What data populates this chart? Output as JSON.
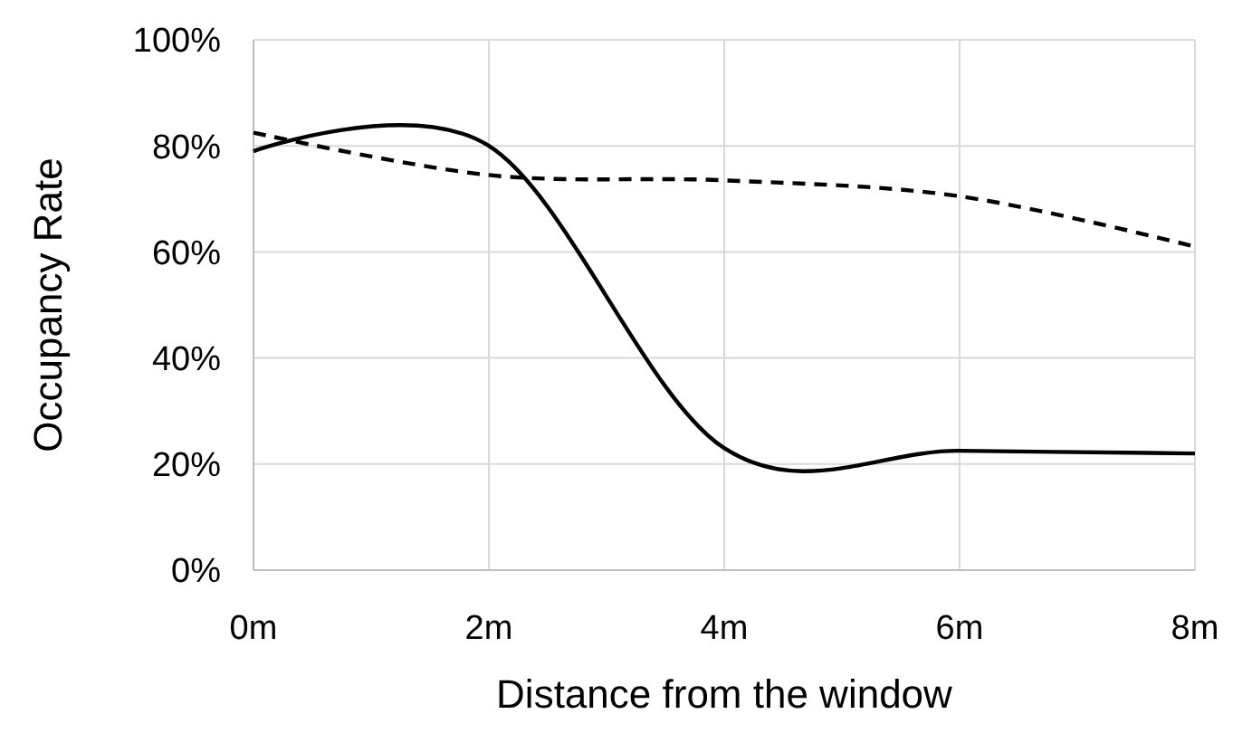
{
  "chart_data": {
    "type": "line",
    "xlabel": "Distance from the window",
    "ylabel": "Occupancy Rate",
    "x": [
      0,
      2,
      4,
      6,
      8
    ],
    "xlim": [
      0,
      8
    ],
    "xticks": [
      {
        "value": 0,
        "label": "0m"
      },
      {
        "value": 2,
        "label": "2m"
      },
      {
        "value": 4,
        "label": "4m"
      },
      {
        "value": 6,
        "label": "6m"
      },
      {
        "value": 8,
        "label": "8m"
      }
    ],
    "ylim": [
      0,
      100
    ],
    "yticks": [
      {
        "value": 0,
        "label": "0%"
      },
      {
        "value": 20,
        "label": "20%"
      },
      {
        "value": 40,
        "label": "40%"
      },
      {
        "value": 60,
        "label": "60%"
      },
      {
        "value": 80,
        "label": "80%"
      },
      {
        "value": 100,
        "label": "100%"
      }
    ],
    "grid": true,
    "marker": "none",
    "series": [
      {
        "color": "#000000",
        "line_style": "solid",
        "values": [
          79,
          80,
          23,
          22.5,
          22
        ]
      },
      {
        "color": "#000000",
        "line_style": "dashed",
        "values": [
          82.5,
          74.5,
          73.5,
          70.5,
          61
        ]
      }
    ]
  }
}
